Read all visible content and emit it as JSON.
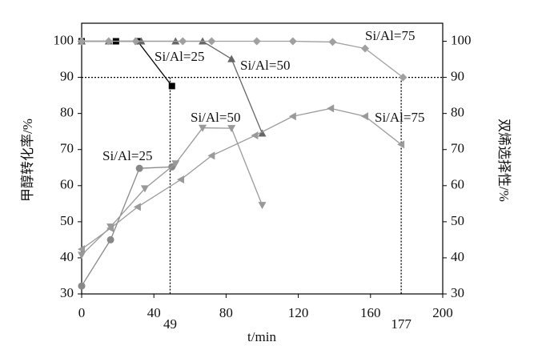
{
  "chart_data": {
    "type": "line",
    "x_label": "t/min",
    "y_label": "甲醇转化率/%",
    "y2_label": "双烯选择性/%",
    "xlim": [
      0,
      200
    ],
    "xticks": [
      0,
      40,
      80,
      120,
      160,
      200
    ],
    "ylim": [
      30,
      105
    ],
    "yticks": [
      30,
      40,
      50,
      60,
      70,
      80,
      90,
      100
    ],
    "y2lim": [
      30,
      105
    ],
    "y2ticks": [
      30,
      40,
      50,
      60,
      70,
      80,
      90,
      100
    ],
    "reference_lines": {
      "y": 90,
      "x": [
        49,
        177
      ]
    },
    "series": [
      {
        "name": "Si/Al=25",
        "axis": "y",
        "color": "#000000",
        "marker": "square",
        "x": [
          0,
          19,
          31,
          50
        ],
        "values": [
          100,
          100,
          100,
          87.6
        ]
      },
      {
        "name": "Si/Al=50",
        "axis": "y",
        "color": "#666666",
        "marker": "triangle-up",
        "x": [
          0,
          15,
          33,
          52,
          67,
          83,
          100
        ],
        "values": [
          100,
          100,
          100,
          100,
          100,
          95.1,
          74.5
        ]
      },
      {
        "name": "Si/Al=75",
        "axis": "y",
        "color": "#a0a0a0",
        "marker": "diamond",
        "x": [
          0,
          15,
          30,
          56,
          72,
          97,
          117,
          139,
          157,
          178
        ],
        "values": [
          100,
          100,
          100,
          100,
          100,
          100,
          100,
          99.8,
          98,
          90
        ]
      },
      {
        "name": "Si/Al=25",
        "axis": "y2",
        "color": "#888888",
        "marker": "circle",
        "x": [
          0,
          16,
          32,
          50
        ],
        "values": [
          32.2,
          45,
          64.8,
          65.2
        ]
      },
      {
        "name": "Si/Al=50",
        "axis": "y2",
        "color": "#999999",
        "marker": "triangle-down",
        "x": [
          0,
          16,
          35,
          52,
          67,
          83,
          100
        ],
        "values": [
          40.8,
          48.6,
          59.2,
          66.1,
          76,
          75.9,
          54.6
        ]
      },
      {
        "name": "Si/Al=75",
        "axis": "y2",
        "color": "#9a9a9a",
        "marker": "triangle-left",
        "x": [
          0,
          16,
          31,
          55,
          72,
          96,
          117,
          138,
          157,
          177
        ],
        "values": [
          42.4,
          48.2,
          54.1,
          61.7,
          68.3,
          73.9,
          79.2,
          81.4,
          79.2,
          71.4
        ]
      }
    ]
  }
}
